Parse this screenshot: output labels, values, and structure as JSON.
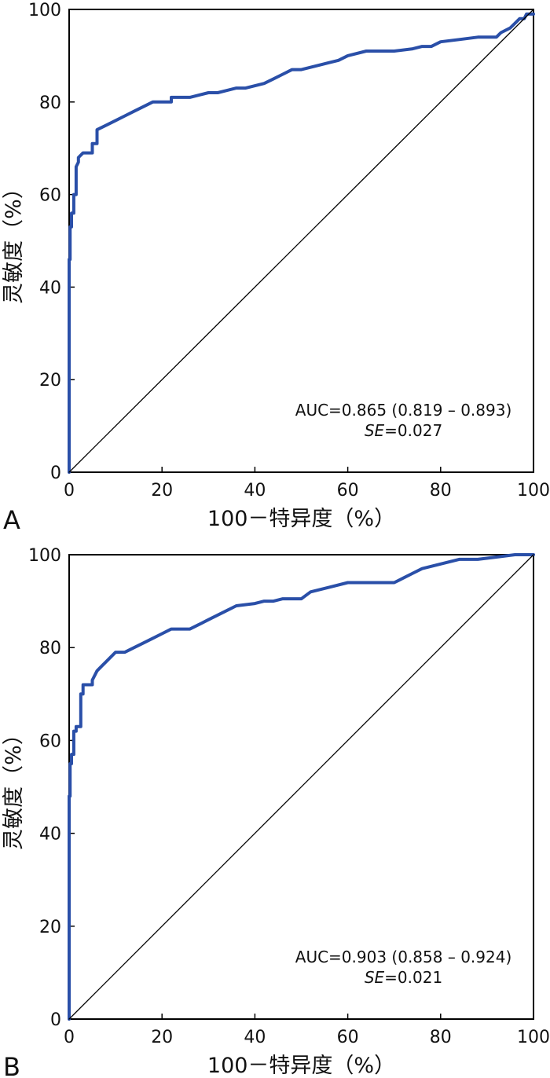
{
  "chart_data": [
    {
      "type": "line",
      "panel_label": "A",
      "xlabel": "100－特异度（%）",
      "ylabel": "灵敏度（%）",
      "xlim": [
        0,
        100
      ],
      "ylim": [
        0,
        100
      ],
      "x_ticks": [
        "0",
        "20",
        "40",
        "60",
        "80",
        "100"
      ],
      "y_ticks": [
        "0",
        "20",
        "40",
        "60",
        "80",
        "100"
      ],
      "grid": false,
      "annotation": {
        "auc": "AUC=0.865 (0.819 – 0.893)",
        "se_label": "SE",
        "se_value": "=0.027"
      },
      "series": [
        {
          "role": "roc",
          "color": "#2a4fa8",
          "x": [
            0,
            0,
            0.2,
            0.2,
            0.5,
            0.5,
            1,
            1,
            1.5,
            1.5,
            2,
            2,
            3,
            5,
            5,
            6,
            6,
            8,
            10,
            12,
            14,
            16,
            18,
            22,
            22,
            26,
            30,
            32,
            34,
            36,
            38,
            42,
            44,
            46,
            48,
            50,
            54,
            56,
            58,
            60,
            64,
            70,
            74,
            76,
            78,
            80,
            84,
            88,
            92,
            93,
            95,
            96,
            97,
            98,
            98.5,
            100
          ],
          "y": [
            0,
            46,
            46,
            53,
            53,
            56,
            56,
            60,
            60,
            66,
            67,
            68,
            69,
            69,
            71,
            71,
            74,
            75,
            76,
            77,
            78,
            79,
            80,
            80,
            81,
            81,
            82,
            82,
            82.5,
            83,
            83,
            84,
            85,
            86,
            87,
            87,
            88,
            88.5,
            89,
            90,
            91,
            91,
            91.5,
            92,
            92,
            93,
            93.5,
            94,
            94,
            95,
            96,
            97,
            98,
            98,
            99,
            99
          ]
        },
        {
          "role": "reference",
          "color": "#000000",
          "x": [
            0,
            100
          ],
          "y": [
            0,
            100
          ]
        }
      ]
    },
    {
      "type": "line",
      "panel_label": "B",
      "xlabel": "100－特异度（%）",
      "ylabel": "灵敏度（%）",
      "xlim": [
        0,
        100
      ],
      "ylim": [
        0,
        100
      ],
      "x_ticks": [
        "0",
        "20",
        "40",
        "60",
        "80",
        "100"
      ],
      "y_ticks": [
        "0",
        "20",
        "40",
        "60",
        "80",
        "100"
      ],
      "grid": false,
      "annotation": {
        "auc": "AUC=0.903 (0.858 – 0.924)",
        "se_label": "SE",
        "se_value": "=0.021"
      },
      "series": [
        {
          "role": "roc",
          "color": "#2a4fa8",
          "x": [
            0,
            0,
            0.2,
            0.2,
            0.5,
            0.5,
            1,
            1,
            1.5,
            1.5,
            2.5,
            2.5,
            3,
            3,
            5,
            5,
            6,
            7,
            8,
            10,
            12,
            14,
            16,
            18,
            20,
            22,
            26,
            28,
            30,
            32,
            34,
            36,
            40,
            42,
            44,
            46,
            50,
            52,
            56,
            60,
            66,
            70,
            72,
            74,
            76,
            80,
            84,
            88,
            92,
            96,
            100
          ],
          "y": [
            0,
            48,
            48,
            55,
            55,
            57,
            57,
            62,
            62,
            63,
            63,
            70,
            70,
            72,
            72,
            73,
            75,
            76,
            77,
            79,
            79,
            80,
            81,
            82,
            83,
            84,
            84,
            85,
            86,
            87,
            88,
            89,
            89.5,
            90,
            90,
            90.5,
            90.5,
            92,
            93,
            94,
            94,
            94,
            95,
            96,
            97,
            98,
            99,
            99,
            99.5,
            100,
            100
          ]
        },
        {
          "role": "reference",
          "color": "#000000",
          "x": [
            0,
            100
          ],
          "y": [
            0,
            100
          ]
        }
      ]
    }
  ]
}
